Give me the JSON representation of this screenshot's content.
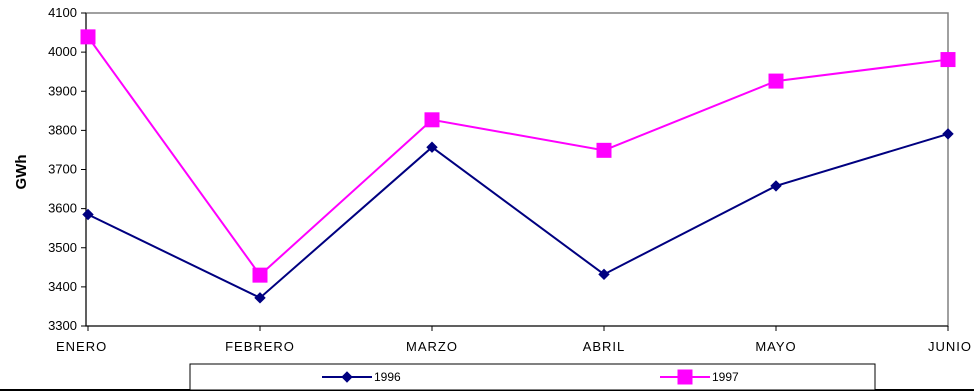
{
  "chart_data": {
    "type": "line",
    "categories": [
      "ENERO",
      "FEBRERO",
      "MARZO",
      "ABRIL",
      "MAYO",
      "JUNIO"
    ],
    "series": [
      {
        "name": "1996",
        "values": [
          3585,
          3372,
          3757,
          3432,
          3658,
          3791
        ],
        "color": "#000080",
        "marker": "diamond"
      },
      {
        "name": "1997",
        "values": [
          4039,
          3430,
          3827,
          3749,
          3926,
          3981
        ],
        "color": "#ff00ff",
        "marker": "square"
      }
    ],
    "xlabel": "",
    "ylabel": "GWh",
    "ylim": [
      3300,
      4100
    ],
    "yticks": [
      3300,
      3400,
      3500,
      3600,
      3700,
      3800,
      3900,
      4000,
      4100
    ],
    "grid": false,
    "legend_position": "bottom"
  }
}
